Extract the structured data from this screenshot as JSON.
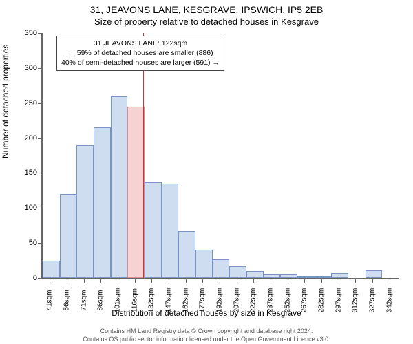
{
  "title_line1": "31, JEAVONS LANE, KESGRAVE, IPSWICH, IP5 2EB",
  "title_line2": "Size of property relative to detached houses in Kesgrave",
  "ylabel": "Number of detached properties",
  "xlabel": "Distribution of detached houses by size in Kesgrave",
  "footer_line1": "Contains HM Land Registry data © Crown copyright and database right 2024.",
  "footer_line2": "Contains OS public sector information licensed under the Open Government Licence v3.0.",
  "chart": {
    "type": "histogram",
    "background_color": "#ffffff",
    "axis_color": "#666666",
    "text_color": "#000000",
    "ylim": [
      0,
      350
    ],
    "ytick_step": 50,
    "ytick_fontsize": 11,
    "xtick_fontsize": 10,
    "label_fontsize": 12,
    "title_fontsize": 14,
    "bar_fill": "#cfddf1",
    "bar_border": "#7a94c1",
    "bar_highlight_fill": "#f6d2d2",
    "bar_highlight_border": "#d98c8c",
    "vline_color": "#d03030",
    "vline_x_sqm": 122,
    "annotation": {
      "line1": "31 JEAVONS LANE: 122sqm",
      "line2": "← 59% of detached houses are smaller (886)",
      "line3": "40% of semi-detached houses are larger (591) →",
      "border_color": "#444444",
      "bg_color": "#ffffff",
      "fontsize": 10.5
    },
    "categories": [
      "41sqm",
      "56sqm",
      "71sqm",
      "86sqm",
      "101sqm",
      "116sqm",
      "132sqm",
      "147sqm",
      "162sqm",
      "177sqm",
      "192sqm",
      "207sqm",
      "222sqm",
      "237sqm",
      "252sqm",
      "267sqm",
      "282sqm",
      "297sqm",
      "312sqm",
      "327sqm",
      "342sqm"
    ],
    "values": [
      25,
      120,
      190,
      215,
      260,
      245,
      137,
      135,
      67,
      40,
      27,
      17,
      10,
      6,
      6,
      3,
      3,
      7,
      0,
      11,
      0
    ],
    "highlight_index": 5,
    "bar_width_ratio": 1.0
  }
}
